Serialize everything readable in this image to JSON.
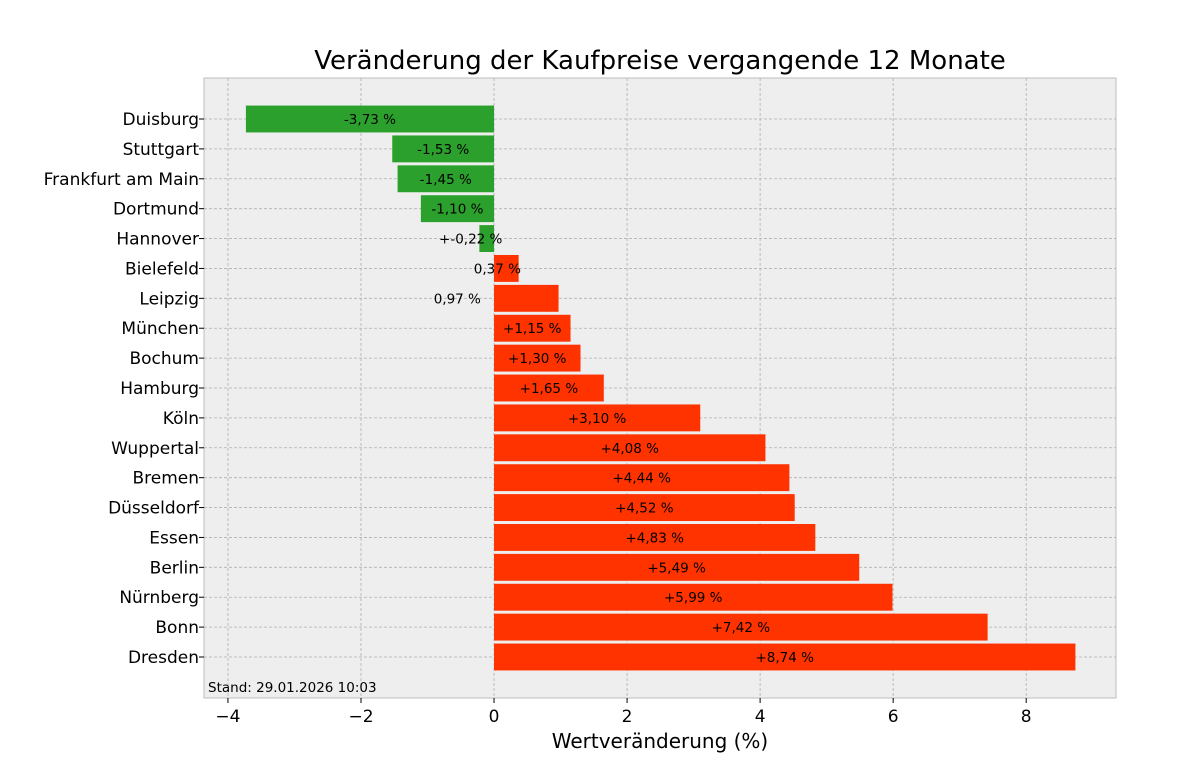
{
  "chart_data": {
    "type": "bar",
    "orientation": "horizontal",
    "title": "Veränderung der Kaufpreise vergangende 12 Monate",
    "xlabel": "Wertveränderung (%)",
    "ylabel": "",
    "xlim": [
      -4.36,
      9.35
    ],
    "xticks": [
      -4,
      -2,
      0,
      2,
      4,
      6,
      8
    ],
    "xtick_labels": [
      "−4",
      "−2",
      "0",
      "2",
      "4",
      "6",
      "8"
    ],
    "grid": true,
    "colors": {
      "negative": "#2ca02c",
      "positive": "#ff3300",
      "background": "#eeeeee"
    },
    "categories": [
      "Duisburg",
      "Stuttgart",
      "Frankfurt am Main",
      "Dortmund",
      "Hannover",
      "Bielefeld",
      "Leipzig",
      "München",
      "Bochum",
      "Hamburg",
      "Köln",
      "Wuppertal",
      "Bremen",
      "Düsseldorf",
      "Essen",
      "Berlin",
      "Nürnberg",
      "Bonn",
      "Dresden"
    ],
    "values": [
      -3.73,
      -1.53,
      -1.45,
      -1.1,
      -0.22,
      0.37,
      0.97,
      1.15,
      1.3,
      1.65,
      3.1,
      4.08,
      4.44,
      4.52,
      4.83,
      5.49,
      5.99,
      7.42,
      8.74
    ],
    "data_labels": [
      "-3,73 %",
      "-1,53 %",
      "-1,45 %",
      "-1,10 %",
      "+-0,22 %",
      "0,37 %",
      "0,97 %",
      "+1,15 %",
      "+1,30 %",
      "+1,65 %",
      "+3,10 %",
      "+4,08 %",
      "+4,44 %",
      "+4,52 %",
      "+4,83 %",
      "+5,49 %",
      "+5,99 %",
      "+7,42 %",
      "+8,74 %"
    ],
    "annotation": "Stand: 29.01.2026 10:03"
  }
}
